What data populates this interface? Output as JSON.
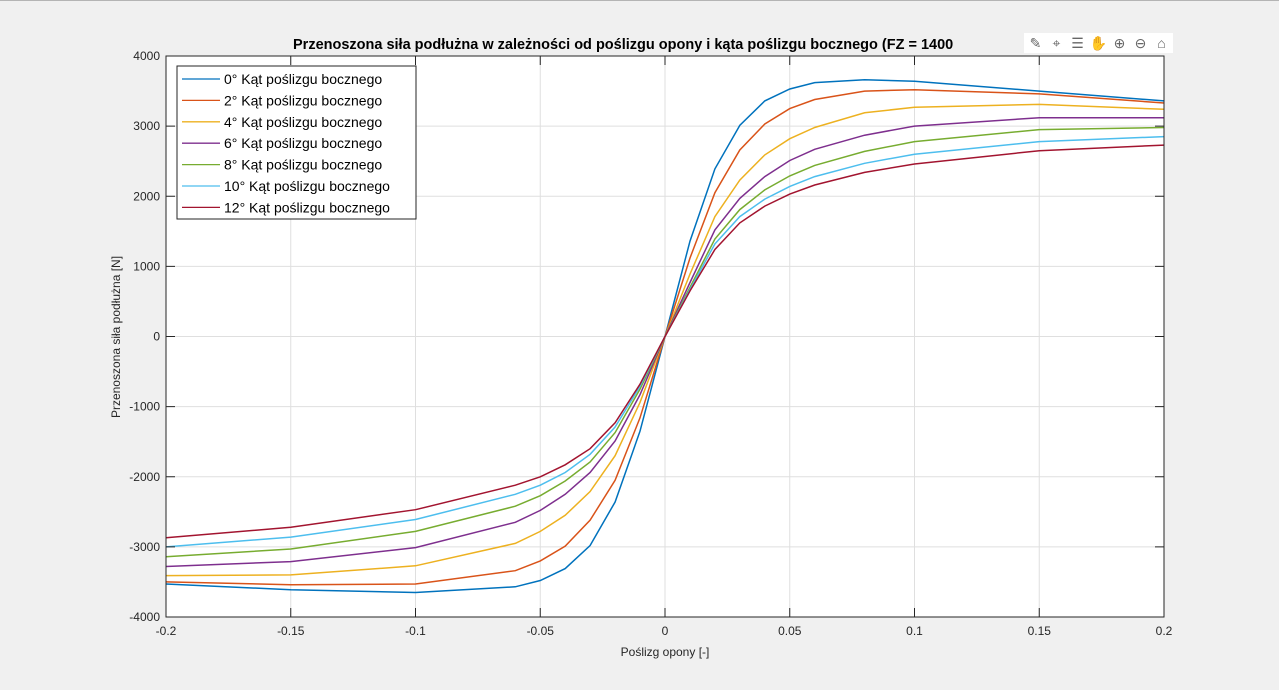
{
  "chart_data": {
    "type": "line",
    "title": "Przenoszona siła podłużna w zależności od poślizgu opony i kąta poślizgu bocznego (FZ = 1400",
    "xlabel": "Poślizg opony [-]",
    "ylabel": "Przenoszona siła podłużna [N]",
    "xlim": [
      -0.2,
      0.2
    ],
    "ylim": [
      -4000,
      4000
    ],
    "xticks": [
      "-0.2",
      "-0.15",
      "-0.1",
      "-0.05",
      "0",
      "0.05",
      "0.1",
      "0.15",
      "0.2"
    ],
    "yticks": [
      "-4000",
      "-3000",
      "-2000",
      "-1000",
      "0",
      "1000",
      "2000",
      "3000",
      "4000"
    ],
    "grid": true,
    "legend_position": "top-left",
    "x": [
      -0.2,
      -0.15,
      -0.1,
      -0.06,
      -0.05,
      -0.04,
      -0.03,
      -0.02,
      -0.01,
      0,
      0.01,
      0.02,
      0.03,
      0.04,
      0.05,
      0.06,
      0.08,
      0.1,
      0.15,
      0.2
    ],
    "series": [
      {
        "name": "0° Kąt poślizgu bocznego",
        "color": "#0072bd",
        "values": [
          -3530,
          -3610,
          -3650,
          -3570,
          -3480,
          -3310,
          -2980,
          -2360,
          -1350,
          0,
          1360,
          2390,
          3010,
          3360,
          3530,
          3620,
          3660,
          3640,
          3500,
          3360
        ]
      },
      {
        "name": "2° Kąt poślizgu bocznego",
        "color": "#d95319",
        "values": [
          -3500,
          -3540,
          -3530,
          -3340,
          -3200,
          -2990,
          -2620,
          -2050,
          -1160,
          0,
          1120,
          2050,
          2660,
          3030,
          3250,
          3380,
          3500,
          3520,
          3460,
          3330
        ]
      },
      {
        "name": "4° Kąt poślizgu bocznego",
        "color": "#edb120",
        "values": [
          -3410,
          -3400,
          -3270,
          -2950,
          -2780,
          -2550,
          -2210,
          -1700,
          -940,
          0,
          890,
          1710,
          2230,
          2590,
          2820,
          2980,
          3190,
          3270,
          3310,
          3240
        ]
      },
      {
        "name": "6° Kąt poślizgu bocznego",
        "color": "#7e2f8e",
        "values": [
          -3280,
          -3210,
          -3010,
          -2650,
          -2480,
          -2250,
          -1940,
          -1490,
          -830,
          0,
          770,
          1520,
          1970,
          2280,
          2510,
          2670,
          2870,
          3000,
          3120,
          3120
        ]
      },
      {
        "name": "8° Kąt poślizgu bocznego",
        "color": "#77ac30",
        "values": [
          -3140,
          -3030,
          -2780,
          -2420,
          -2270,
          -2060,
          -1790,
          -1370,
          -750,
          0,
          700,
          1390,
          1810,
          2090,
          2290,
          2440,
          2640,
          2780,
          2950,
          2980
        ]
      },
      {
        "name": "10° Kąt poślizgu bocznego",
        "color": "#4dbeee",
        "values": [
          -3000,
          -2860,
          -2610,
          -2250,
          -2120,
          -1940,
          -1680,
          -1290,
          -710,
          0,
          670,
          1320,
          1710,
          1960,
          2140,
          2280,
          2470,
          2600,
          2780,
          2850
        ]
      },
      {
        "name": "12° Kąt poślizgu bocznego",
        "color": "#a2142f",
        "values": [
          -2870,
          -2720,
          -2470,
          -2120,
          -2000,
          -1830,
          -1600,
          -1230,
          -680,
          0,
          650,
          1240,
          1620,
          1860,
          2030,
          2160,
          2340,
          2460,
          2650,
          2730
        ]
      }
    ]
  },
  "toolbar": {
    "icons": [
      "brush-icon",
      "data-tips-icon",
      "legend-icon",
      "pan-icon",
      "zoom-in-icon",
      "zoom-out-icon",
      "home-icon"
    ],
    "glyphs": [
      "✎",
      "⌖",
      "☰",
      "✋",
      "⊕",
      "⊖",
      "⌂"
    ]
  }
}
